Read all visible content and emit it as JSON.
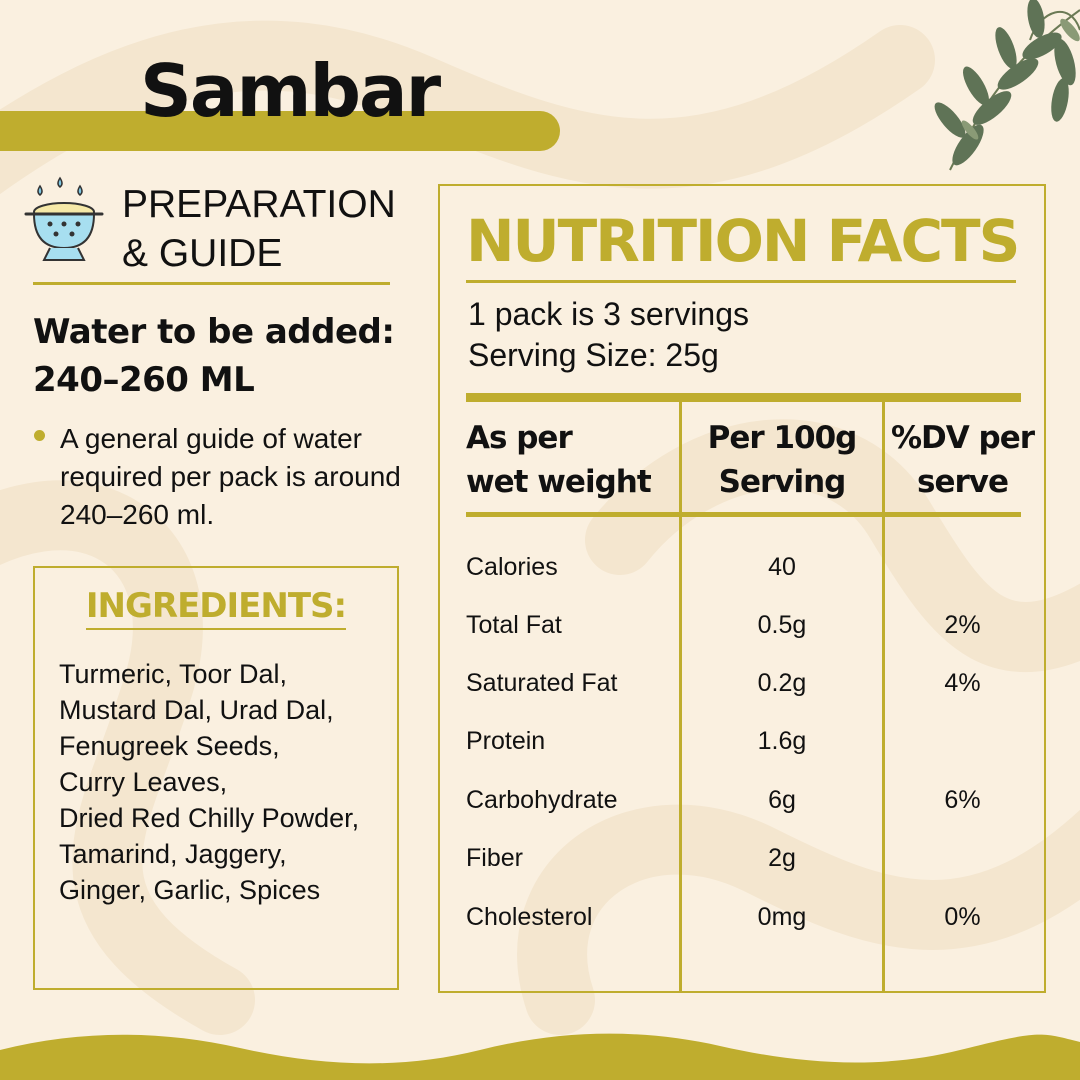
{
  "product": {
    "name": "Sambar"
  },
  "preparation": {
    "heading_line1": "PREPARATION",
    "heading_line2": "& GUIDE",
    "water_label": "Water to be added:",
    "water_amount": "240–260 ML",
    "note": "A general guide of water required per pack is around 240–260 ml."
  },
  "ingredients": {
    "heading": "INGREDIENTS:",
    "lines": [
      "Turmeric, Toor Dal,",
      "Mustard Dal, Urad Dal,",
      "Fenugreek Seeds,",
      "Curry Leaves,",
      "Dried Red Chilly Powder,",
      "Tamarind, Jaggery,",
      "Ginger, Garlic, Spices"
    ]
  },
  "nutrition": {
    "title": "NUTRITION FACTS",
    "servings_per_pack": "1 pack is 3 servings",
    "serving_size": "Serving Size: 25g",
    "columns": [
      [
        "As per",
        "wet weight"
      ],
      [
        "Per 100g",
        "Serving"
      ],
      [
        "%DV per",
        "serve"
      ]
    ],
    "rows": [
      {
        "nutrient": "Calories",
        "per_100g": "40",
        "dv": ""
      },
      {
        "nutrient": "Total Fat",
        "per_100g": "0.5g",
        "dv": "2%"
      },
      {
        "nutrient": "Saturated Fat",
        "per_100g": "0.2g",
        "dv": "4%"
      },
      {
        "nutrient": "Protein",
        "per_100g": "1.6g",
        "dv": ""
      },
      {
        "nutrient": "Carbohydrate",
        "per_100g": "6g",
        "dv": "6%"
      },
      {
        "nutrient": "Fiber",
        "per_100g": "2g",
        "dv": ""
      },
      {
        "nutrient": "Cholesterol",
        "per_100g": "0mg",
        "dv": "0%"
      }
    ]
  },
  "colors": {
    "accent": "#bfad2e",
    "background": "#faf0e0",
    "text": "#111111"
  },
  "icons": [
    "colander-icon",
    "curry-leaves-illustration"
  ]
}
